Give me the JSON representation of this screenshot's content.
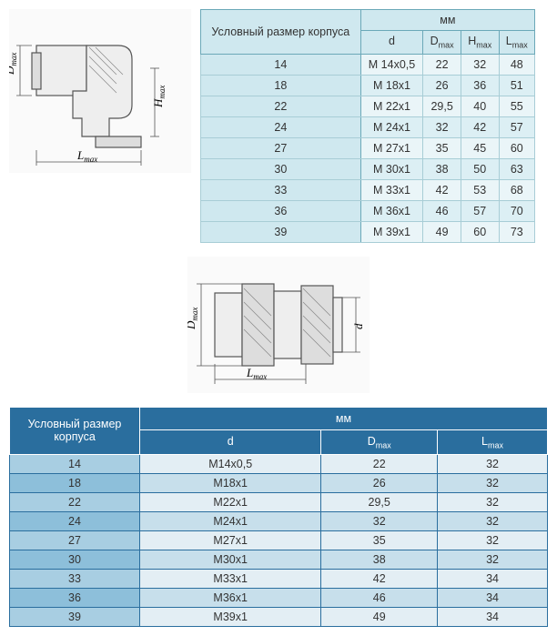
{
  "table1": {
    "header": {
      "body_size": "Условный размер корпуса",
      "mm": "мм",
      "cols": [
        "d",
        "D",
        "H",
        "L"
      ],
      "subs": [
        "",
        "max",
        "max",
        "max"
      ]
    },
    "rows": [
      {
        "size": "14",
        "d": "М 14х0,5",
        "D": "22",
        "H": "32",
        "L": "48"
      },
      {
        "size": "18",
        "d": "М 18х1",
        "D": "26",
        "H": "36",
        "L": "51"
      },
      {
        "size": "22",
        "d": "М 22х1",
        "D": "29,5",
        "H": "40",
        "L": "55"
      },
      {
        "size": "24",
        "d": "М 24х1",
        "D": "32",
        "H": "42",
        "L": "57"
      },
      {
        "size": "27",
        "d": "М 27х1",
        "D": "35",
        "H": "45",
        "L": "60"
      },
      {
        "size": "30",
        "d": "М 30х1",
        "D": "38",
        "H": "50",
        "L": "63"
      },
      {
        "size": "33",
        "d": "М 33х1",
        "D": "42",
        "H": "53",
        "L": "68"
      },
      {
        "size": "36",
        "d": "М 36х1",
        "D": "46",
        "H": "57",
        "L": "70"
      },
      {
        "size": "39",
        "d": "М 39х1",
        "D": "49",
        "H": "60",
        "L": "73"
      }
    ]
  },
  "table2": {
    "header": {
      "body_size": "Условный размер корпуса",
      "mm": "мм",
      "cols": [
        "d",
        "D",
        "L"
      ],
      "subs": [
        "",
        "max",
        "max"
      ]
    },
    "rows": [
      {
        "size": "14",
        "d": "М14х0,5",
        "D": "22",
        "L": "32"
      },
      {
        "size": "18",
        "d": "М18х1",
        "D": "26",
        "L": "32"
      },
      {
        "size": "22",
        "d": "М22х1",
        "D": "29,5",
        "L": "32"
      },
      {
        "size": "24",
        "d": "М24х1",
        "D": "32",
        "L": "32"
      },
      {
        "size": "27",
        "d": "М27х1",
        "D": "35",
        "L": "32"
      },
      {
        "size": "30",
        "d": "М30х1",
        "D": "38",
        "L": "32"
      },
      {
        "size": "33",
        "d": "М33х1",
        "D": "42",
        "L": "34"
      },
      {
        "size": "36",
        "d": "М36х1",
        "D": "46",
        "L": "34"
      },
      {
        "size": "39",
        "d": "М39х1",
        "D": "49",
        "L": "34"
      }
    ]
  },
  "drawing_labels": {
    "Dmax": "D",
    "Dmax_sub": "max",
    "Hmax": "H",
    "Hmax_sub": "max",
    "Lmax": "L",
    "Lmax_sub": "max",
    "d": "d"
  }
}
